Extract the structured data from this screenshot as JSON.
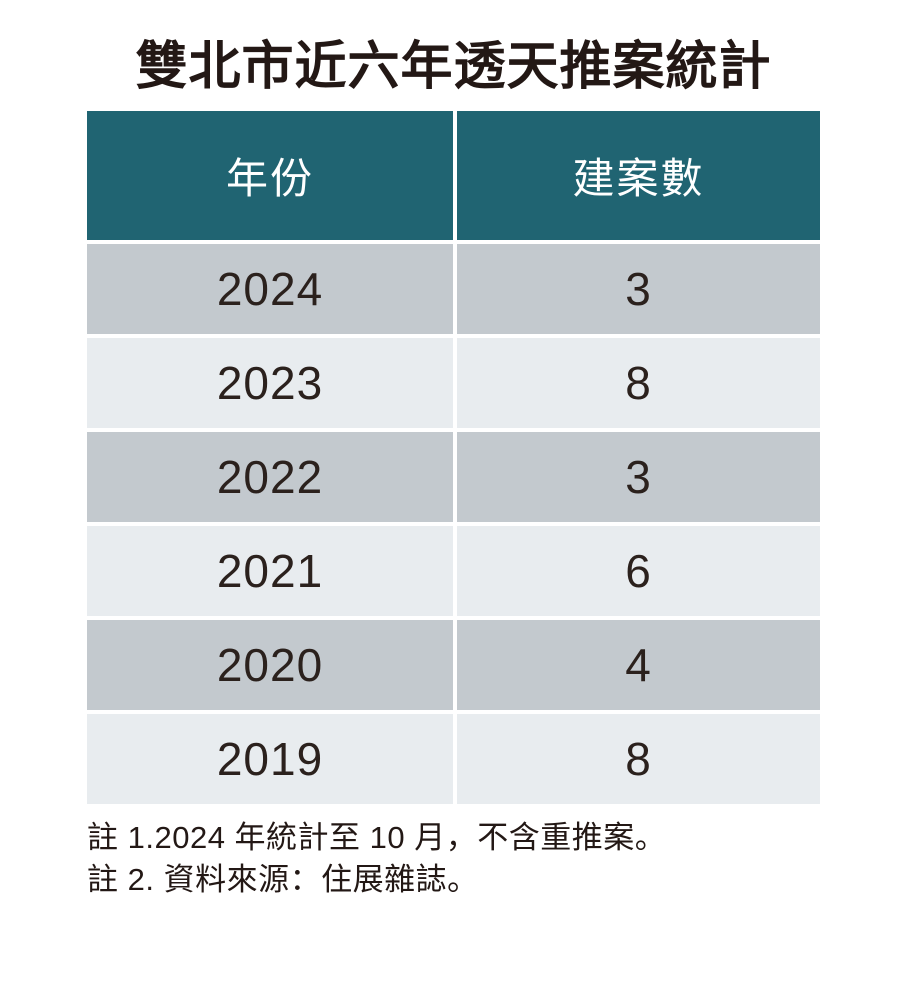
{
  "title": "雙北市近六年透天推案統計",
  "table": {
    "col1_header": "年份",
    "col2_header": "建案數",
    "rows": [
      {
        "year": "2024",
        "count": "3"
      },
      {
        "year": "2023",
        "count": "8"
      },
      {
        "year": "2022",
        "count": "3"
      },
      {
        "year": "2021",
        "count": "6"
      },
      {
        "year": "2020",
        "count": "4"
      },
      {
        "year": "2019",
        "count": "8"
      }
    ]
  },
  "notes": {
    "line1": "註 1.2024 年統計至 10 月，不含重推案。",
    "line2": "註 2. 資料來源：住展雜誌。"
  },
  "colors": {
    "header_bg": "#206472",
    "header_text": "#ffffff",
    "row_gray_bg": "#c3c9ce",
    "row_light_bg": "#e8ecef",
    "text_dark": "#231815",
    "page_bg": "#ffffff"
  },
  "chart_data": {
    "type": "table",
    "title": "雙北市近六年透天推案統計",
    "columns": [
      "年份",
      "建案數"
    ],
    "categories": [
      "2024",
      "2023",
      "2022",
      "2021",
      "2020",
      "2019"
    ],
    "values": [
      3,
      8,
      3,
      6,
      4,
      8
    ],
    "annotations": [
      "註 1.2024 年統計至 10 月，不含重推案。",
      "註 2. 資料來源：住展雜誌。"
    ],
    "layout_hints": {
      "header_style": "teal background, white text",
      "rows": "alternating gray (#c3c9ce) and light (#e8ecef) bands",
      "legend_position": "none",
      "grid": false
    }
  }
}
